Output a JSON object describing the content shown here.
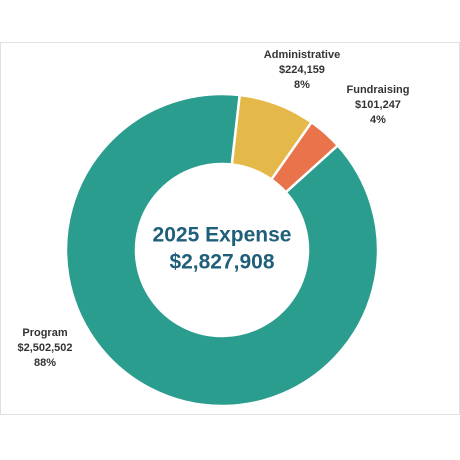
{
  "chart_data": {
    "type": "donut",
    "title": "2025 Expense",
    "total_label": "$2,827,908",
    "categories": [
      "Program",
      "Administrative",
      "Fundraising"
    ],
    "values": [
      2502502,
      224159,
      101247
    ],
    "value_labels": [
      "$2,502,502",
      "$224,159",
      "$101,247"
    ],
    "percent_labels": [
      "88%",
      "8%",
      "4%"
    ],
    "colors": [
      "#2a9d8f",
      "#e4b94a",
      "#e9734a"
    ]
  }
}
